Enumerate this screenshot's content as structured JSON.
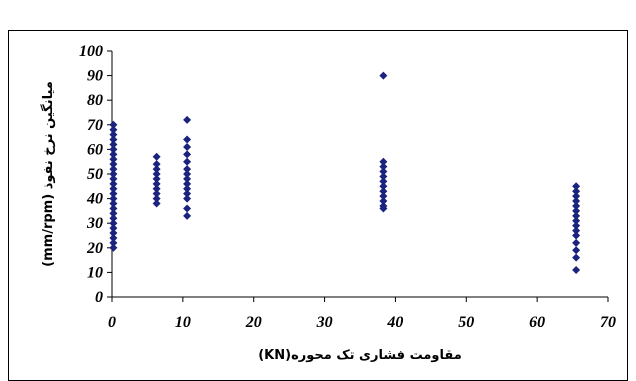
{
  "header": {
    "title": ""
  },
  "chart_data": {
    "type": "scatter",
    "title": "",
    "xlabel": "مقاومت فشاری تک محوره(KN)",
    "ylabel": "میانگین نرخ نفوذ (mm/rpm)",
    "xlim": [
      0,
      70
    ],
    "ylim": [
      0,
      100
    ],
    "xticks": [
      "0",
      "10",
      "20",
      "30",
      "40",
      "50",
      "60",
      "70"
    ],
    "yticks": [
      "0",
      "10",
      "20",
      "30",
      "40",
      "50",
      "60",
      "70",
      "80",
      "90",
      "100"
    ],
    "grid": false,
    "legend": "none",
    "marker": "diamond",
    "marker_color": "#1a237e",
    "series": [
      {
        "points": [
          [
            0.2,
            70
          ],
          [
            0.2,
            68
          ],
          [
            0.2,
            66
          ],
          [
            0.2,
            64
          ],
          [
            0.2,
            62
          ],
          [
            0.2,
            60
          ],
          [
            0.2,
            58
          ],
          [
            0.2,
            56
          ],
          [
            0.2,
            54
          ],
          [
            0.2,
            52
          ],
          [
            0.2,
            50
          ],
          [
            0.2,
            48
          ],
          [
            0.2,
            46
          ],
          [
            0.2,
            44
          ],
          [
            0.2,
            42
          ],
          [
            0.2,
            40
          ],
          [
            0.2,
            38
          ],
          [
            0.2,
            36
          ],
          [
            0.2,
            34
          ],
          [
            0.2,
            32
          ],
          [
            0.2,
            30
          ],
          [
            0.2,
            28
          ],
          [
            0.2,
            26
          ],
          [
            0.2,
            24
          ],
          [
            0.2,
            22
          ],
          [
            0.2,
            20
          ],
          [
            6.3,
            57
          ],
          [
            6.3,
            54
          ],
          [
            6.3,
            52
          ],
          [
            6.3,
            50
          ],
          [
            6.3,
            48
          ],
          [
            6.3,
            46
          ],
          [
            6.3,
            44
          ],
          [
            6.3,
            42
          ],
          [
            6.3,
            40
          ],
          [
            6.3,
            38
          ],
          [
            10.6,
            72
          ],
          [
            10.6,
            64
          ],
          [
            10.6,
            61
          ],
          [
            10.6,
            58
          ],
          [
            10.6,
            55
          ],
          [
            10.6,
            52
          ],
          [
            10.6,
            50
          ],
          [
            10.6,
            48
          ],
          [
            10.6,
            46
          ],
          [
            10.6,
            44
          ],
          [
            10.6,
            42
          ],
          [
            10.6,
            40
          ],
          [
            10.6,
            36
          ],
          [
            10.6,
            33
          ],
          [
            38.3,
            90
          ],
          [
            38.3,
            55
          ],
          [
            38.3,
            53
          ],
          [
            38.3,
            51
          ],
          [
            38.3,
            49
          ],
          [
            38.3,
            47
          ],
          [
            38.3,
            45
          ],
          [
            38.3,
            43
          ],
          [
            38.3,
            41
          ],
          [
            38.3,
            39
          ],
          [
            38.3,
            37
          ],
          [
            38.3,
            36
          ],
          [
            65.5,
            45
          ],
          [
            65.5,
            43
          ],
          [
            65.5,
            41
          ],
          [
            65.5,
            39
          ],
          [
            65.5,
            37
          ],
          [
            65.5,
            35
          ],
          [
            65.5,
            33
          ],
          [
            65.5,
            31
          ],
          [
            65.5,
            29
          ],
          [
            65.5,
            27
          ],
          [
            65.5,
            25
          ],
          [
            65.5,
            22
          ],
          [
            65.5,
            19
          ],
          [
            65.5,
            16
          ],
          [
            65.5,
            11
          ]
        ]
      }
    ]
  }
}
